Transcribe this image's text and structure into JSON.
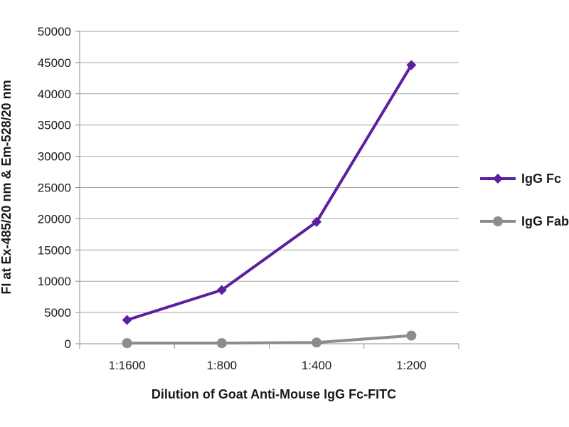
{
  "chart_data": {
    "type": "line",
    "title": "",
    "xlabel": "Dilution of Goat Anti-Mouse IgG Fc-FITC",
    "ylabel": "FI at Ex-485/20 nm & Em-528/20 nm",
    "categories": [
      "1:1600",
      "1:800",
      "1:400",
      "1:200"
    ],
    "ylim": [
      0,
      50000
    ],
    "yticks": [
      0,
      5000,
      10000,
      15000,
      20000,
      25000,
      30000,
      35000,
      40000,
      45000,
      50000
    ],
    "grid": true,
    "legend_position": "right",
    "series": [
      {
        "name": "IgG Fc",
        "values": [
          3800,
          8600,
          19500,
          44600
        ],
        "color": "#5B1FA0",
        "marker": "diamond"
      },
      {
        "name": "IgG Fab",
        "values": [
          100,
          100,
          200,
          1300
        ],
        "color": "#8C8C8C",
        "marker": "circle"
      }
    ]
  }
}
